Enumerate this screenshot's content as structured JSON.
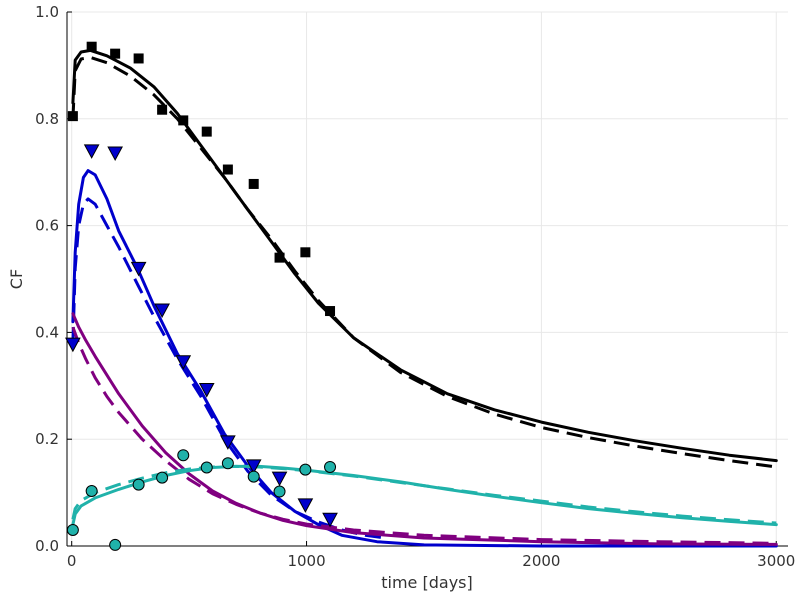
{
  "chart_data": {
    "type": "line",
    "xlabel": "time [days]",
    "ylabel": "CF",
    "xlim": [
      -20,
      3050
    ],
    "ylim": [
      0,
      1
    ],
    "xticks": [
      0,
      1000,
      2000,
      3000
    ],
    "yticks": [
      0.0,
      0.2,
      0.4,
      0.6,
      0.8,
      1.0
    ],
    "xtick_labels": [
      "0",
      "1000",
      "2000",
      "3000"
    ],
    "ytick_labels": [
      "0.0",
      "0.2",
      "0.4",
      "0.6",
      "0.8",
      "1.0"
    ],
    "grid": true,
    "legend": "none",
    "series": [
      {
        "color": "#000000",
        "solid": [
          [
            5,
            0.83
          ],
          [
            15,
            0.91
          ],
          [
            40,
            0.925
          ],
          [
            80,
            0.928
          ],
          [
            150,
            0.918
          ],
          [
            250,
            0.895
          ],
          [
            350,
            0.86
          ],
          [
            450,
            0.81
          ],
          [
            550,
            0.75
          ],
          [
            650,
            0.69
          ],
          [
            750,
            0.63
          ],
          [
            850,
            0.57
          ],
          [
            950,
            0.51
          ],
          [
            1050,
            0.455
          ],
          [
            1200,
            0.39
          ],
          [
            1400,
            0.33
          ],
          [
            1600,
            0.285
          ],
          [
            1800,
            0.255
          ],
          [
            2000,
            0.232
          ],
          [
            2200,
            0.213
          ],
          [
            2400,
            0.197
          ],
          [
            2600,
            0.183
          ],
          [
            2800,
            0.17
          ],
          [
            3000,
            0.16
          ]
        ],
        "dashed": [
          [
            5,
            0.8
          ],
          [
            15,
            0.89
          ],
          [
            40,
            0.912
          ],
          [
            80,
            0.915
          ],
          [
            150,
            0.905
          ],
          [
            250,
            0.88
          ],
          [
            350,
            0.845
          ],
          [
            450,
            0.8
          ],
          [
            550,
            0.745
          ],
          [
            650,
            0.69
          ],
          [
            750,
            0.63
          ],
          [
            850,
            0.575
          ],
          [
            950,
            0.515
          ],
          [
            1050,
            0.46
          ],
          [
            1200,
            0.39
          ],
          [
            1400,
            0.325
          ],
          [
            1600,
            0.28
          ],
          [
            1800,
            0.247
          ],
          [
            2000,
            0.222
          ],
          [
            2200,
            0.203
          ],
          [
            2400,
            0.187
          ],
          [
            2600,
            0.173
          ],
          [
            2800,
            0.16
          ],
          [
            3000,
            0.148
          ]
        ],
        "marker": "square",
        "points": [
          [
            5,
            0.805
          ],
          [
            85,
            0.935
          ],
          [
            185,
            0.922
          ],
          [
            285,
            0.913
          ],
          [
            385,
            0.817
          ],
          [
            475,
            0.797
          ],
          [
            575,
            0.776
          ],
          [
            665,
            0.705
          ],
          [
            775,
            0.678
          ],
          [
            885,
            0.54
          ],
          [
            995,
            0.55
          ],
          [
            1100,
            0.44
          ]
        ]
      },
      {
        "color": "#0000cc",
        "solid": [
          [
            5,
            0.42
          ],
          [
            15,
            0.55
          ],
          [
            30,
            0.64
          ],
          [
            50,
            0.69
          ],
          [
            70,
            0.703
          ],
          [
            100,
            0.695
          ],
          [
            150,
            0.65
          ],
          [
            200,
            0.59
          ],
          [
            280,
            0.52
          ],
          [
            350,
            0.45
          ],
          [
            450,
            0.36
          ],
          [
            550,
            0.29
          ],
          [
            650,
            0.21
          ],
          [
            750,
            0.15
          ],
          [
            850,
            0.1
          ],
          [
            950,
            0.065
          ],
          [
            1050,
            0.04
          ],
          [
            1150,
            0.02
          ],
          [
            1300,
            0.008
          ],
          [
            1500,
            0.002
          ],
          [
            2000,
            0.0
          ],
          [
            3000,
            0.0
          ]
        ],
        "dashed": [
          [
            5,
            0.38
          ],
          [
            15,
            0.52
          ],
          [
            30,
            0.6
          ],
          [
            50,
            0.64
          ],
          [
            70,
            0.65
          ],
          [
            100,
            0.64
          ],
          [
            150,
            0.6
          ],
          [
            200,
            0.56
          ],
          [
            280,
            0.49
          ],
          [
            350,
            0.43
          ],
          [
            450,
            0.35
          ],
          [
            550,
            0.28
          ],
          [
            650,
            0.2
          ],
          [
            750,
            0.14
          ],
          [
            850,
            0.095
          ],
          [
            950,
            0.065
          ],
          [
            1050,
            0.045
          ],
          [
            1150,
            0.03
          ],
          [
            1250,
            0.02
          ],
          [
            1350,
            0.014
          ]
        ],
        "marker": "triangle-down",
        "points": [
          [
            5,
            0.378
          ],
          [
            85,
            0.74
          ],
          [
            185,
            0.736
          ],
          [
            285,
            0.52
          ],
          [
            385,
            0.442
          ],
          [
            475,
            0.345
          ],
          [
            575,
            0.293
          ],
          [
            665,
            0.195
          ],
          [
            775,
            0.15
          ],
          [
            885,
            0.127
          ],
          [
            995,
            0.077
          ],
          [
            1100,
            0.05
          ]
        ]
      },
      {
        "color": "#800080",
        "solid": [
          [
            5,
            0.435
          ],
          [
            30,
            0.41
          ],
          [
            60,
            0.385
          ],
          [
            100,
            0.355
          ],
          [
            150,
            0.32
          ],
          [
            200,
            0.285
          ],
          [
            300,
            0.225
          ],
          [
            400,
            0.175
          ],
          [
            500,
            0.135
          ],
          [
            600,
            0.103
          ],
          [
            700,
            0.08
          ],
          [
            800,
            0.062
          ],
          [
            900,
            0.048
          ],
          [
            1000,
            0.038
          ],
          [
            1200,
            0.025
          ],
          [
            1500,
            0.015
          ],
          [
            2000,
            0.008
          ],
          [
            2500,
            0.004
          ],
          [
            3000,
            0.003
          ]
        ],
        "dashed": [
          [
            5,
            0.41
          ],
          [
            30,
            0.38
          ],
          [
            60,
            0.35
          ],
          [
            100,
            0.315
          ],
          [
            150,
            0.28
          ],
          [
            200,
            0.25
          ],
          [
            300,
            0.2
          ],
          [
            400,
            0.16
          ],
          [
            500,
            0.125
          ],
          [
            600,
            0.098
          ],
          [
            700,
            0.078
          ],
          [
            800,
            0.062
          ],
          [
            900,
            0.05
          ],
          [
            1000,
            0.041
          ],
          [
            1200,
            0.03
          ],
          [
            1500,
            0.02
          ],
          [
            2000,
            0.012
          ],
          [
            2500,
            0.008
          ],
          [
            3000,
            0.005
          ]
        ]
      },
      {
        "color": "#20b2aa",
        "solid": [
          [
            5,
            0.04
          ],
          [
            15,
            0.06
          ],
          [
            40,
            0.075
          ],
          [
            100,
            0.09
          ],
          [
            200,
            0.106
          ],
          [
            300,
            0.12
          ],
          [
            400,
            0.132
          ],
          [
            500,
            0.141
          ],
          [
            600,
            0.147
          ],
          [
            700,
            0.149
          ],
          [
            800,
            0.149
          ],
          [
            900,
            0.146
          ],
          [
            1000,
            0.142
          ],
          [
            1200,
            0.132
          ],
          [
            1400,
            0.12
          ],
          [
            1600,
            0.106
          ],
          [
            1800,
            0.093
          ],
          [
            2000,
            0.081
          ],
          [
            2200,
            0.07
          ],
          [
            2400,
            0.061
          ],
          [
            2600,
            0.053
          ],
          [
            2800,
            0.046
          ],
          [
            3000,
            0.04
          ]
        ],
        "dashed": [
          [
            5,
            0.05
          ],
          [
            15,
            0.07
          ],
          [
            40,
            0.085
          ],
          [
            100,
            0.1
          ],
          [
            200,
            0.115
          ],
          [
            300,
            0.127
          ],
          [
            400,
            0.137
          ],
          [
            500,
            0.144
          ],
          [
            600,
            0.148
          ],
          [
            700,
            0.149
          ],
          [
            800,
            0.148
          ],
          [
            900,
            0.145
          ],
          [
            1000,
            0.141
          ],
          [
            1200,
            0.131
          ],
          [
            1400,
            0.119
          ],
          [
            1600,
            0.107
          ],
          [
            1800,
            0.095
          ],
          [
            2000,
            0.084
          ],
          [
            2200,
            0.073
          ],
          [
            2400,
            0.064
          ],
          [
            2600,
            0.056
          ],
          [
            2800,
            0.049
          ],
          [
            3000,
            0.043
          ]
        ],
        "marker": "circle",
        "points": [
          [
            5,
            0.03
          ],
          [
            85,
            0.103
          ],
          [
            185,
            0.002
          ],
          [
            285,
            0.115
          ],
          [
            385,
            0.128
          ],
          [
            475,
            0.17
          ],
          [
            575,
            0.147
          ],
          [
            665,
            0.155
          ],
          [
            775,
            0.13
          ],
          [
            885,
            0.102
          ],
          [
            995,
            0.143
          ],
          [
            1100,
            0.148
          ]
        ]
      }
    ]
  }
}
